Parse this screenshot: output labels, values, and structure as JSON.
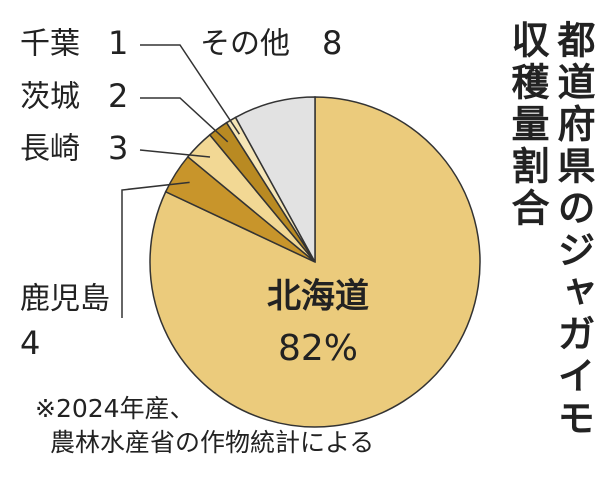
{
  "chart_data": {
    "type": "pie",
    "title": "都道府県のジャガイモ収穫量割合",
    "categories": [
      "北海道",
      "鹿児島",
      "長崎",
      "茨城",
      "千葉",
      "その他"
    ],
    "values": [
      82,
      4,
      3,
      2,
      1,
      8
    ],
    "value_labels": [
      "82%",
      "4",
      "3",
      "2",
      "1",
      "8"
    ],
    "colors": [
      "#ebcb7c",
      "#c8952b",
      "#f2d894",
      "#b98a22",
      "#f6e6b6",
      "#e2e2e2"
    ],
    "notes": [
      "※2024年産、",
      "農林水産省の作物統計による"
    ]
  }
}
